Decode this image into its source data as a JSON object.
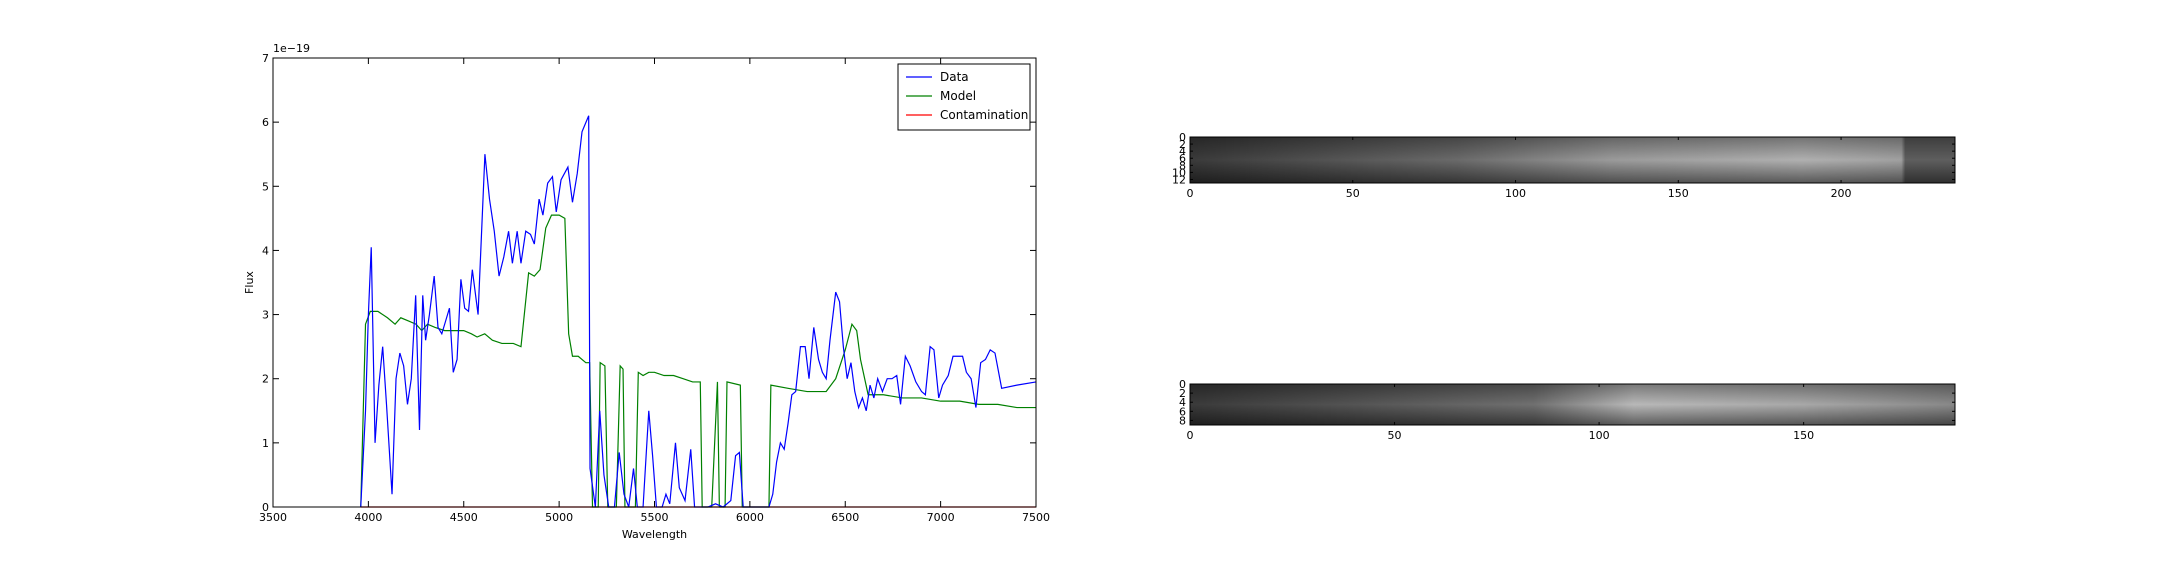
{
  "chart_data": [
    {
      "type": "line",
      "xlabel": "Wavelength",
      "ylabel": "Flux",
      "offset_text": "1e−19",
      "xlim": [
        3500,
        7500
      ],
      "xticks": [
        3500,
        4000,
        4500,
        5000,
        5500,
        6000,
        6500,
        7000,
        7500
      ],
      "ylim": [
        0,
        7
      ],
      "yticks": [
        0,
        1,
        2,
        3,
        4,
        5,
        6,
        7
      ],
      "legend": "upper right",
      "series": [
        {
          "name": "Data",
          "color": "#0000ff",
          "x": [
            3960,
            3985,
            4000,
            4015,
            4035,
            4055,
            4075,
            4095,
            4124,
            4145,
            4165,
            4185,
            4205,
            4225,
            4248,
            4268,
            4285,
            4300,
            4320,
            4345,
            4365,
            4385,
            4405,
            4425,
            4445,
            4465,
            4485,
            4505,
            4525,
            4545,
            4575,
            4611,
            4635,
            4660,
            4685,
            4710,
            4735,
            4755,
            4780,
            4800,
            4825,
            4850,
            4870,
            4895,
            4915,
            4940,
            4965,
            4985,
            5010,
            5046,
            5070,
            5095,
            5120,
            5155,
            5162,
            5190,
            5213,
            5235,
            5260,
            5290,
            5315,
            5340,
            5365,
            5390,
            5410,
            5440,
            5470,
            5490,
            5510,
            5540,
            5560,
            5580,
            5610,
            5630,
            5660,
            5690,
            5710,
            5740,
            5780,
            5820,
            5860,
            5900,
            5925,
            5945,
            5965,
            6000,
            6060,
            6100,
            6120,
            6140,
            6160,
            6180,
            6200,
            6220,
            6240,
            6265,
            6290,
            6310,
            6335,
            6360,
            6380,
            6400,
            6420,
            6450,
            6470,
            6490,
            6510,
            6530,
            6550,
            6570,
            6590,
            6610,
            6630,
            6650,
            6670,
            6695,
            6720,
            6745,
            6770,
            6790,
            6815,
            6840,
            6870,
            6900,
            6920,
            6945,
            6965,
            6990,
            7010,
            7040,
            7065,
            7090,
            7115,
            7135,
            7160,
            7185,
            7210,
            7235,
            7260,
            7285,
            7320,
            7400,
            7500
          ],
          "values": [
            0,
            1.5,
            3.0,
            4.05,
            1.0,
            1.9,
            2.5,
            1.6,
            0.2,
            2.0,
            2.4,
            2.2,
            1.6,
            2.0,
            3.3,
            1.2,
            3.3,
            2.6,
            3.0,
            3.6,
            2.8,
            2.7,
            2.9,
            3.1,
            2.1,
            2.3,
            3.55,
            3.1,
            3.05,
            3.7,
            3.0,
            5.5,
            4.8,
            4.3,
            3.6,
            3.9,
            4.3,
            3.8,
            4.3,
            3.8,
            4.3,
            4.25,
            4.1,
            4.8,
            4.55,
            5.05,
            5.15,
            4.6,
            5.1,
            5.3,
            4.75,
            5.2,
            5.85,
            6.1,
            0.6,
            0,
            1.5,
            0.5,
            0,
            0,
            0.85,
            0.2,
            0,
            0.6,
            0,
            0,
            1.5,
            0.8,
            0,
            0,
            0.2,
            0.05,
            1.0,
            0.3,
            0.1,
            0.9,
            0,
            0,
            0,
            0.05,
            0,
            0.1,
            0.8,
            0.85,
            0,
            0,
            0,
            0,
            0.2,
            0.7,
            1.0,
            0.9,
            1.3,
            1.75,
            1.8,
            2.5,
            2.5,
            2.0,
            2.8,
            2.3,
            2.1,
            2.0,
            2.6,
            3.35,
            3.2,
            2.5,
            2.0,
            2.25,
            1.8,
            1.55,
            1.7,
            1.5,
            1.9,
            1.7,
            2.0,
            1.8,
            2.0,
            2.0,
            2.05,
            1.6,
            2.35,
            2.2,
            1.95,
            1.8,
            1.75,
            2.5,
            2.45,
            1.7,
            1.9,
            2.05,
            2.35,
            2.35,
            2.35,
            2.1,
            2.0,
            1.55,
            2.25,
            2.3,
            2.45,
            2.4,
            1.85,
            1.9,
            1.95
          ]
        },
        {
          "name": "Model",
          "color": "#008000",
          "x": [
            3960,
            3985,
            4010,
            4050,
            4100,
            4140,
            4170,
            4210,
            4250,
            4280,
            4310,
            4350,
            4400,
            4450,
            4500,
            4540,
            4570,
            4610,
            4650,
            4700,
            4760,
            4800,
            4840,
            4870,
            4900,
            4930,
            4960,
            5000,
            5030,
            5050,
            5070,
            5100,
            5140,
            5160,
            5175,
            5205,
            5215,
            5240,
            5255,
            5300,
            5320,
            5335,
            5345,
            5400,
            5415,
            5440,
            5470,
            5500,
            5550,
            5600,
            5650,
            5700,
            5740,
            5750,
            5800,
            5830,
            5840,
            5870,
            5880,
            5950,
            5960,
            6100,
            6110,
            6200,
            6300,
            6400,
            6450,
            6500,
            6535,
            6560,
            6580,
            6620,
            6700,
            6800,
            6900,
            7000,
            7100,
            7200,
            7300,
            7400,
            7500
          ],
          "values": [
            0,
            2.85,
            3.05,
            3.05,
            2.95,
            2.85,
            2.95,
            2.9,
            2.85,
            2.75,
            2.85,
            2.8,
            2.75,
            2.75,
            2.75,
            2.7,
            2.65,
            2.7,
            2.6,
            2.55,
            2.55,
            2.5,
            3.65,
            3.6,
            3.7,
            4.35,
            4.55,
            4.55,
            4.5,
            2.7,
            2.35,
            2.35,
            2.25,
            2.25,
            0,
            0,
            2.25,
            2.2,
            0,
            0,
            2.2,
            2.15,
            0,
            0,
            2.1,
            2.05,
            2.1,
            2.1,
            2.05,
            2.05,
            2.0,
            1.95,
            1.95,
            0,
            0,
            1.95,
            0,
            0,
            1.95,
            1.9,
            0,
            0,
            1.9,
            1.85,
            1.8,
            1.8,
            2.0,
            2.45,
            2.85,
            2.75,
            2.3,
            1.75,
            1.75,
            1.7,
            1.7,
            1.65,
            1.65,
            1.6,
            1.6,
            1.55,
            1.55
          ]
        },
        {
          "name": "Contamination",
          "color": "#ff0000",
          "x": [
            3960,
            7500
          ],
          "values": [
            0,
            0
          ]
        }
      ]
    },
    {
      "type": "image",
      "xlim": [
        0,
        235
      ],
      "xticks": [
        0,
        50,
        100,
        150,
        200
      ],
      "ylim": [
        13,
        0
      ],
      "yticks": [
        0,
        2,
        4,
        6,
        8,
        10,
        12
      ]
    },
    {
      "type": "image",
      "xlim": [
        0,
        187
      ],
      "xticks": [
        0,
        50,
        100,
        150
      ],
      "ylim": [
        9,
        0
      ],
      "yticks": [
        0,
        2,
        4,
        6,
        8
      ]
    }
  ]
}
